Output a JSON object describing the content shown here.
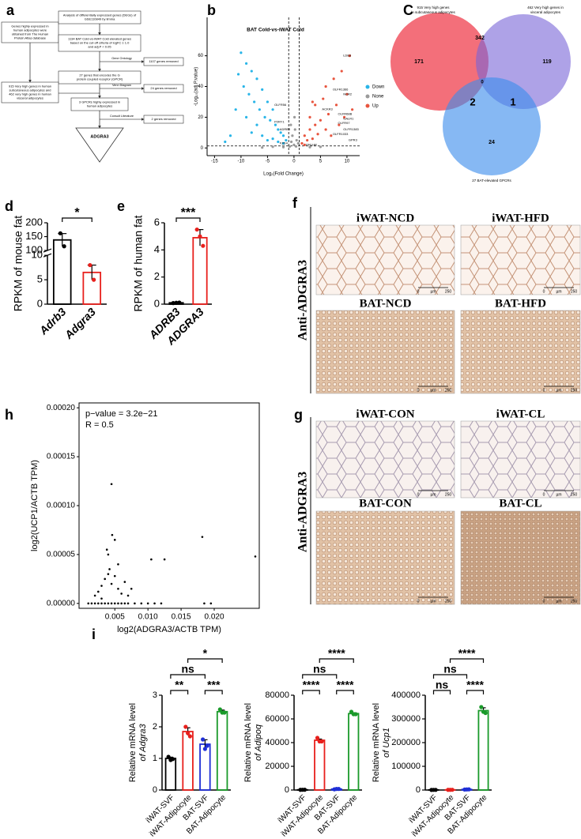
{
  "panel_labels": [
    "a",
    "b",
    "C",
    "d",
    "e",
    "f",
    "h",
    "g",
    "i"
  ],
  "flowchart": {
    "boxes": [
      [
        "Genes highly expressed in",
        "human adipocytes were",
        "obtained from The Human",
        "Protein Atlas database"
      ],
      [
        "Analysis of differentially expressed genes (DEGs) of",
        "GSE110849 by limma"
      ],
      [
        "1134 BAT Cold-vs-iWAT Cold elevated genes",
        "based on the cut-off criteria of logFC ≥ 1.0",
        "and adj.P < 0.05"
      ],
      [
        "27 genes that encodes the G",
        "protein coupled receptor (GPCR)"
      ],
      [
        "915 Very high genes in human",
        "subcutaneous adipocytes and",
        "462 very high genes in human",
        "visceral adipocytes"
      ],
      [
        "3 GPCRs highly expressed in",
        "human adipocytes"
      ]
    ],
    "steps": [
      "Gene Ontology",
      "Venn Diagram",
      "Consult Literature"
    ],
    "removed": [
      "1107 genes removed",
      "24 genes removed",
      "2 genes removed"
    ],
    "result": "ADGRA3"
  },
  "venn": {
    "set_labels": [
      [
        "915 Very high genes",
        "in subcutaneous adipocytes"
      ],
      [
        "462 Very high genes in",
        "visceral adipocytes"
      ],
      [
        "27 BAT-elevated GPCRs"
      ]
    ],
    "counts": [
      171,
      342,
      119,
      0,
      2,
      1,
      24
    ]
  },
  "micrographs": {
    "f": {
      "stain": "Anti-ADGRA3",
      "titles": [
        "iWAT-NCD",
        "iWAT-HFD",
        "BAT-NCD",
        "BAT-HFD"
      ]
    },
    "g": {
      "stain": "Anti-ADGRA3",
      "titles": [
        "iWAT-CON",
        "iWAT-CL",
        "BAT-CON",
        "BAT-CL"
      ]
    },
    "scale_bar": [
      "0",
      "µm",
      "250"
    ]
  },
  "chart_data": [
    {
      "type": "scatter",
      "title": "BAT Cold-vs-iWAT Cold",
      "x_label": "Log₂(Fold Change)",
      "y_label": "-Log₁₀(adj.P.value)",
      "xlim": [
        -16.4,
        12.4
      ],
      "ylim": [
        -5,
        85
      ],
      "xticks": [
        -15,
        -10,
        -5,
        0,
        5,
        10
      ],
      "yticks": [
        0,
        20,
        40,
        60
      ],
      "legend": true,
      "thresholds": {
        "x": [
          -1,
          1
        ],
        "y": 1.3
      },
      "series": [
        {
          "name": "Down",
          "color": "#29b5e8",
          "x": [
            -12,
            -11,
            -10.5,
            -10,
            -9.5,
            -9,
            -9,
            -8.5,
            -8,
            -8,
            -7.5,
            -7,
            -7,
            -6.5,
            -6,
            -6,
            -5.5,
            -5,
            -5,
            -4.5,
            -4,
            -4,
            -3.5,
            -3,
            -3,
            -2.5,
            -2,
            -2,
            -1.5,
            -13
          ],
          "values": [
            8,
            25,
            48,
            62,
            40,
            55,
            20,
            35,
            50,
            10,
            30,
            45,
            15,
            25,
            38,
            8,
            20,
            30,
            5,
            18,
            25,
            6,
            15,
            12,
            4,
            10,
            8,
            3,
            5,
            4
          ]
        },
        {
          "name": "None",
          "color": "#9a9a9a",
          "x": [
            -0.8,
            -0.5,
            -0.3,
            0,
            0.2,
            0.5,
            0.8,
            -0.6,
            0.4,
            0.1,
            -2,
            -4,
            3,
            5,
            -6
          ],
          "values": [
            1,
            4,
            8,
            2,
            12,
            5,
            3,
            15,
            1,
            20,
            0.5,
            0.8,
            0.5,
            0.7,
            0.3
          ]
        },
        {
          "name": "Up",
          "color": "#e8553f",
          "x": [
            1.5,
            2,
            2.5,
            3,
            3,
            3.5,
            4,
            4,
            4.5,
            5,
            5.5,
            6,
            6,
            6.5,
            7,
            7.5,
            8,
            8.5,
            9,
            9.5,
            10,
            10.5,
            11,
            2,
            3.5
          ],
          "values": [
            3,
            8,
            5,
            12,
            20,
            6,
            15,
            28,
            9,
            18,
            32,
            12,
            40,
            22,
            8,
            45,
            28,
            15,
            50,
            20,
            35,
            60,
            25,
            2,
            30
          ]
        }
      ],
      "annotations": [
        {
          "text": "LDB3",
          "x": 9,
          "y": 60
        },
        {
          "text": "OLFR1366",
          "x": 7,
          "y": 38
        },
        {
          "text": "NCR2",
          "x": 9,
          "y": 35
        },
        {
          "text": "ACKR3",
          "x": 5,
          "y": 25
        },
        {
          "text": "OLFR68B",
          "x": 8,
          "y": 22
        },
        {
          "text": "GALR1",
          "x": 9,
          "y": 19
        },
        {
          "text": "OLFR97",
          "x": 8,
          "y": 16
        },
        {
          "text": "OLFR1383",
          "x": 9,
          "y": 12
        },
        {
          "text": "OLFR1033",
          "x": 7,
          "y": 9
        },
        {
          "text": "GPR3",
          "x": 10,
          "y": 5
        },
        {
          "text": "OLFR56",
          "x": -4,
          "y": 28
        },
        {
          "text": "P2RY1",
          "x": -4,
          "y": 17
        },
        {
          "text": "ADRB3",
          "x": -3,
          "y": 12
        },
        {
          "text": "FZD4",
          "x": -3,
          "y": 3
        },
        {
          "text": "PRLHR",
          "x": 2,
          "y": 2
        }
      ]
    },
    {
      "type": "bar",
      "y_label": "RPKM of mouse fat",
      "categories": [
        "Adrb3",
        "Adgra3"
      ],
      "italic_categories": true,
      "values": [
        138,
        6.5
      ],
      "errors": [
        23,
        1.5
      ],
      "dots": [
        [
          162,
          115
        ],
        [
          8,
          5
        ]
      ],
      "colors": [
        "#000000",
        "#e8201c"
      ],
      "ylim": [
        0,
        200
      ],
      "yticks": [
        0,
        5,
        10,
        100,
        150,
        200
      ],
      "axis_break": [
        10,
        100
      ],
      "comparisons": [
        {
          "groups": [
            0,
            1
          ],
          "label": "*"
        }
      ]
    },
    {
      "type": "bar",
      "y_label": "RPKM of human fat",
      "categories": [
        "ADRB3",
        "ADGRA3"
      ],
      "italic_categories": true,
      "values": [
        0.1,
        4.9
      ],
      "errors": [
        0.02,
        0.6
      ],
      "dots": [
        [
          0.08,
          0.1,
          0.12
        ],
        [
          5.5,
          5.0,
          4.3
        ]
      ],
      "colors": [
        "#000000",
        "#e8201c"
      ],
      "ylim": [
        0,
        6
      ],
      "yticks": [
        0,
        2,
        4,
        6
      ],
      "comparisons": [
        {
          "groups": [
            0,
            1
          ],
          "label": "***"
        }
      ]
    },
    {
      "type": "scatter",
      "frame": true,
      "x_label": "log2(ADGRA3/ACTB TPM)",
      "y_label": "log2(UCP1/ACTB TPM)",
      "annotations": [
        "p−value = 3.2e−21",
        "R = 0.5"
      ],
      "xlim": [
        -0.0004,
        0.0268
      ],
      "ylim": [
        -5e-06,
        0.000205
      ],
      "xticks": [
        0.005,
        {
          "value": 0.01,
          "label": "0.010"
        },
        0.015,
        {
          "value": 0.02,
          "label": "0.020"
        }
      ],
      "yticks": [
        {
          "value": 0,
          "label": "0.00000"
        },
        {
          "value": 5e-05,
          "label": "0.00005"
        },
        {
          "value": 0.0001,
          "label": "0.00010"
        },
        {
          "value": 0.00015,
          "label": "0.00015"
        },
        {
          "value": 0.0002,
          "label": "0.00020"
        }
      ],
      "color": "#000000",
      "x": [
        0.001,
        0.0015,
        0.002,
        0.0025,
        0.003,
        0.0035,
        0.004,
        0.0045,
        0.005,
        0.0055,
        0.006,
        0.0065,
        0.007,
        0.008,
        0.009,
        0.01,
        0.011,
        0.012,
        0.0185,
        0.0195,
        0.002,
        0.0025,
        0.003,
        0.0035,
        0.004,
        0.0042,
        0.0045,
        0.005,
        0.0055,
        0.006,
        0.0065,
        0.007,
        0.004,
        0.0045,
        0.005,
        0.0038,
        0.0046,
        0.0105,
        0.0125,
        0.0182,
        0.0262,
        0.0075,
        0.003,
        0.0055
      ],
      "values": [
        0,
        0,
        0,
        0,
        0,
        0,
        0,
        0,
        0,
        0,
        0,
        0,
        0,
        0,
        0,
        0,
        0,
        0,
        0,
        0,
        8e-06,
        1.2e-05,
        1.8e-05,
        2.5e-05,
        3e-05,
        3.5e-05,
        2e-05,
        2.8e-05,
        1.5e-05,
        1e-05,
        2.2e-05,
        8e-06,
        5e-05,
        0.000122,
        6.5e-05,
        5.5e-05,
        7e-05,
        4.5e-05,
        4.5e-05,
        6.8e-05,
        4.8e-05,
        1.5e-05,
        5e-06,
        4e-05
      ]
    },
    {
      "type": "bar",
      "y_label": [
        "Relative mRNA level",
        "of Adgra3"
      ],
      "categories": [
        "iWAT-SVF",
        "iWAT-Adipocyte",
        "BAT-SVF",
        "BAT-Adipocyte"
      ],
      "values": [
        1.0,
        1.85,
        1.45,
        2.48
      ],
      "errors": [
        0.04,
        0.12,
        0.14,
        0.05
      ],
      "dots": [
        [
          1.05,
          0.95,
          0.98
        ],
        [
          2.0,
          1.8,
          1.7
        ],
        [
          1.6,
          1.3,
          1.4
        ],
        [
          2.55,
          2.45,
          2.45
        ]
      ],
      "colors": [
        "#000000",
        "#e8201c",
        "#1f2fd6",
        "#1a9a2a"
      ],
      "ylim": [
        0,
        3
      ],
      "yticks": [
        0,
        1,
        2,
        3
      ],
      "comparisons": [
        {
          "groups": [
            0,
            1
          ],
          "label": "**"
        },
        {
          "groups": [
            2,
            3
          ],
          "label": "***"
        },
        {
          "groups": [
            0,
            2
          ],
          "label": "ns"
        },
        {
          "groups": [
            1,
            3
          ],
          "label": "*"
        }
      ]
    },
    {
      "type": "bar",
      "y_label": [
        "Relative mRNA level",
        "of Adipoq"
      ],
      "categories": [
        "iWAT-SVF",
        "iWAT-Adipocyte",
        "BAT-SVF",
        "BAT-Adipocyte"
      ],
      "values": [
        200,
        42000,
        800,
        64500
      ],
      "errors": [
        30,
        1000,
        100,
        700
      ],
      "dots": [
        [
          150,
          200,
          250
        ],
        [
          44000,
          41000,
          41000
        ],
        [
          600,
          900,
          900
        ],
        [
          66000,
          64000,
          64000
        ]
      ],
      "colors": [
        "#000000",
        "#e8201c",
        "#1f2fd6",
        "#1a9a2a"
      ],
      "ylim": [
        0,
        80000
      ],
      "yticks": [
        0,
        20000,
        40000,
        60000,
        80000
      ],
      "comparisons": [
        {
          "groups": [
            0,
            1
          ],
          "label": "****"
        },
        {
          "groups": [
            2,
            3
          ],
          "label": "****"
        },
        {
          "groups": [
            0,
            2
          ],
          "label": "ns"
        },
        {
          "groups": [
            1,
            3
          ],
          "label": "****"
        }
      ]
    },
    {
      "type": "bar",
      "y_label": [
        "Relative mRNA level",
        "of Ucp1"
      ],
      "categories": [
        "iWAT-SVF",
        "iWAT-Adipocyte",
        "BAT-SVF",
        "BAT-Adipocyte"
      ],
      "values": [
        600,
        900,
        2500,
        335000
      ],
      "errors": [
        100,
        150,
        400,
        12000
      ],
      "dots": [
        [
          500,
          600,
          700
        ],
        [
          800,
          900,
          1000
        ],
        [
          2000,
          2500,
          3000
        ],
        [
          350000,
          330000,
          325000
        ]
      ],
      "colors": [
        "#000000",
        "#e8201c",
        "#1f2fd6",
        "#1a9a2a"
      ],
      "ylim": [
        0,
        400000
      ],
      "yticks": [
        0,
        100000,
        200000,
        300000,
        400000
      ],
      "comparisons": [
        {
          "groups": [
            0,
            1
          ],
          "label": "ns"
        },
        {
          "groups": [
            2,
            3
          ],
          "label": "****"
        },
        {
          "groups": [
            0,
            2
          ],
          "label": "ns"
        },
        {
          "groups": [
            1,
            3
          ],
          "label": "****"
        }
      ]
    }
  ]
}
